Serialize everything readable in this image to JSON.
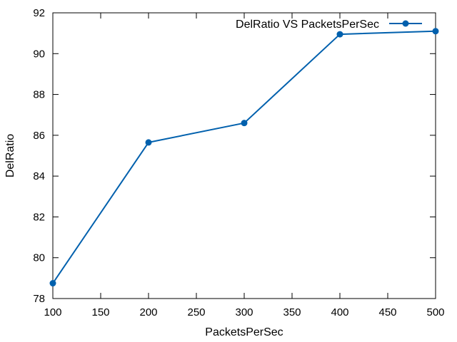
{
  "chart_data": {
    "type": "line",
    "title": "",
    "xlabel": "PacketsPerSec",
    "ylabel": "DelRatio",
    "xlim": [
      100,
      500
    ],
    "ylim": [
      78,
      92
    ],
    "xticks": [
      100,
      150,
      200,
      250,
      300,
      350,
      400,
      450,
      500
    ],
    "yticks": [
      78,
      80,
      82,
      84,
      86,
      88,
      90,
      92
    ],
    "grid": false,
    "legend_position": "top-right",
    "series": [
      {
        "name": "DelRatio VS PacketsPerSec",
        "color": "#0060ad",
        "marker": "circle",
        "x": [
          100,
          200,
          300,
          400,
          500
        ],
        "y": [
          78.75,
          85.65,
          86.6,
          90.95,
          91.1
        ]
      }
    ]
  }
}
